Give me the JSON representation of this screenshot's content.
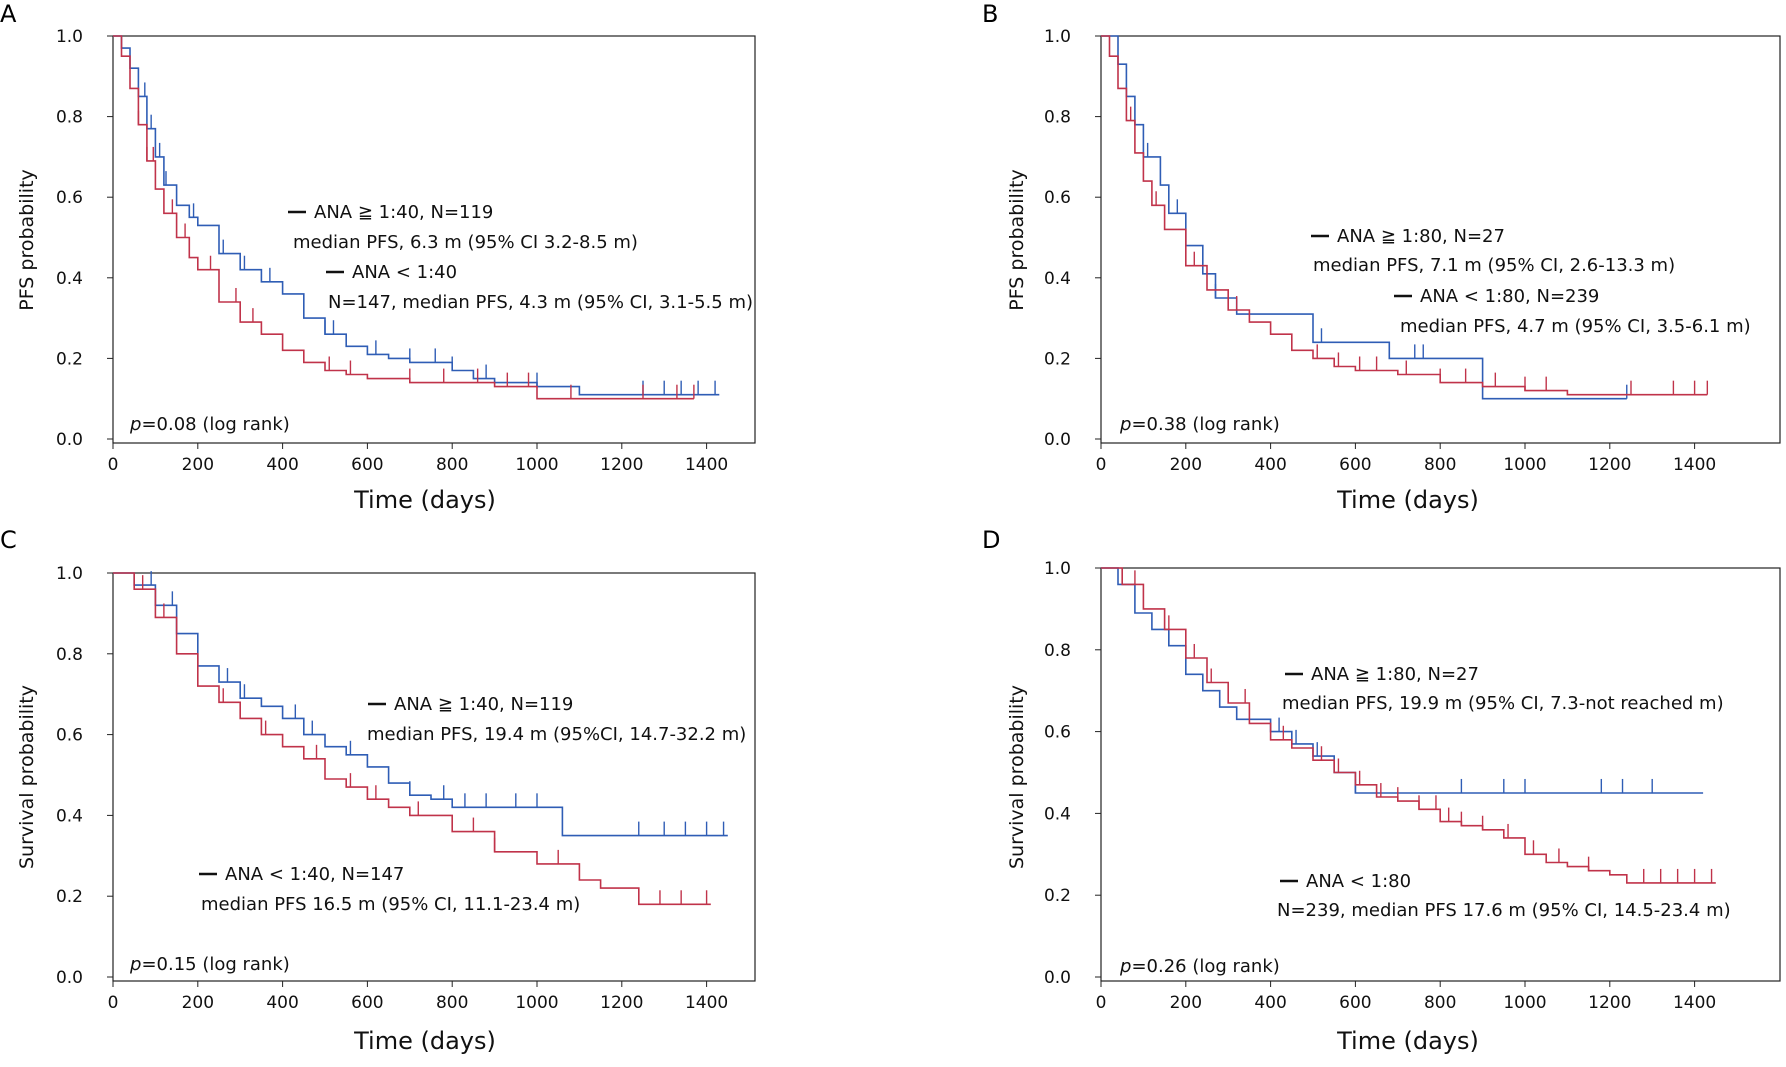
{
  "chart_data": [
    {
      "panel": "A",
      "type": "line",
      "xlabel": "Time (days)",
      "ylabel": "PFS probability",
      "xlim": [
        0,
        1500
      ],
      "ylim": [
        0,
        1.0
      ],
      "xticks": [
        0,
        200,
        400,
        600,
        800,
        1000,
        1200,
        1400
      ],
      "yticks": [
        "0.0",
        "0.2",
        "0.4",
        "0.6",
        "0.8",
        "1.0"
      ],
      "pvalue": "=0.08  (log rank)",
      "series": [
        {
          "name": "ANA ≧ 1:40",
          "color": "#2F5DB5",
          "x": [
            0,
            20,
            40,
            60,
            80,
            100,
            120,
            150,
            180,
            200,
            250,
            300,
            350,
            400,
            450,
            500,
            550,
            600,
            650,
            700,
            750,
            800,
            850,
            900,
            1000,
            1100,
            1200,
            1300,
            1430
          ],
          "y": [
            1.0,
            0.97,
            0.92,
            0.85,
            0.77,
            0.7,
            0.63,
            0.58,
            0.55,
            0.53,
            0.46,
            0.42,
            0.39,
            0.36,
            0.3,
            0.26,
            0.23,
            0.21,
            0.2,
            0.19,
            0.19,
            0.17,
            0.15,
            0.14,
            0.13,
            0.11,
            0.11,
            0.11,
            0.11
          ],
          "censor_x": [
            75,
            90,
            110,
            125,
            190,
            260,
            310,
            370,
            500,
            520,
            620,
            700,
            760,
            800,
            880,
            1000,
            1250,
            1300,
            1340,
            1380,
            1420
          ]
        },
        {
          "name": "ANA < 1:40",
          "color": "#C0334A",
          "x": [
            0,
            20,
            40,
            60,
            80,
            100,
            120,
            150,
            180,
            200,
            250,
            300,
            350,
            400,
            450,
            500,
            550,
            600,
            650,
            700,
            800,
            900,
            1000,
            1100,
            1200,
            1300,
            1370
          ],
          "y": [
            1.0,
            0.95,
            0.87,
            0.78,
            0.69,
            0.62,
            0.56,
            0.5,
            0.45,
            0.42,
            0.34,
            0.29,
            0.26,
            0.22,
            0.19,
            0.17,
            0.16,
            0.15,
            0.15,
            0.14,
            0.14,
            0.13,
            0.1,
            0.1,
            0.1,
            0.1,
            0.1
          ],
          "censor_x": [
            60,
            80,
            95,
            140,
            170,
            230,
            290,
            330,
            510,
            560,
            700,
            780,
            860,
            930,
            980,
            1080,
            1250,
            1330,
            1370
          ]
        }
      ],
      "annotations": [
        {
          "line1": "ANA ≧ 1:40, N=119",
          "line2": "median PFS, 6.3 m (95% CI 3.2-8.5 m)"
        },
        {
          "line1": "ANA <  1:40",
          "line2": "N=147, median PFS, 4.3 m (95% CI, 3.1-5.5 m)"
        }
      ]
    },
    {
      "panel": "B",
      "type": "line",
      "xlabel": "Time (days)",
      "ylabel": "PFS probability",
      "xlim": [
        0,
        1500
      ],
      "ylim": [
        0,
        1.0
      ],
      "xticks": [
        0,
        200,
        400,
        600,
        800,
        1000,
        1200,
        1400
      ],
      "yticks": [
        "0.0",
        "0.2",
        "0.4",
        "0.6",
        "0.8",
        "1.0"
      ],
      "pvalue": "=0.38  (log rank)",
      "series": [
        {
          "name": "ANA ≧ 1:80",
          "color": "#2F5DB5",
          "x": [
            0,
            40,
            60,
            80,
            100,
            140,
            160,
            200,
            240,
            270,
            320,
            500,
            680,
            900,
            1240
          ],
          "y": [
            1.0,
            0.93,
            0.85,
            0.78,
            0.7,
            0.63,
            0.56,
            0.48,
            0.41,
            0.35,
            0.31,
            0.24,
            0.2,
            0.1,
            0.1
          ],
          "censor_x": [
            110,
            180,
            270,
            520,
            740,
            760,
            1240
          ]
        },
        {
          "name": "ANA < 1:80",
          "color": "#C0334A",
          "x": [
            0,
            20,
            40,
            60,
            80,
            100,
            120,
            150,
            200,
            250,
            300,
            350,
            400,
            450,
            500,
            550,
            600,
            700,
            800,
            900,
            1000,
            1100,
            1200,
            1300,
            1430
          ],
          "y": [
            1.0,
            0.95,
            0.87,
            0.79,
            0.71,
            0.64,
            0.58,
            0.52,
            0.43,
            0.37,
            0.32,
            0.29,
            0.26,
            0.22,
            0.2,
            0.18,
            0.17,
            0.16,
            0.14,
            0.13,
            0.12,
            0.11,
            0.11,
            0.11,
            0.11
          ],
          "censor_x": [
            70,
            130,
            220,
            320,
            510,
            560,
            610,
            650,
            720,
            800,
            860,
            930,
            1000,
            1050,
            1250,
            1350,
            1400,
            1430
          ]
        }
      ],
      "annotations": [
        {
          "line1": "ANA ≧ 1:80, N=27",
          "line2": "median PFS, 7.1 m (95% CI, 2.6-13.3 m)"
        },
        {
          "line1": "ANA <  1:80, N=239",
          "line2": "median PFS, 4.7 m (95% CI, 3.5-6.1 m)"
        }
      ]
    },
    {
      "panel": "C",
      "type": "line",
      "xlabel": "Time (days)",
      "ylabel": "Survival probability",
      "xlim": [
        0,
        1500
      ],
      "ylim": [
        0,
        1.0
      ],
      "xticks": [
        0,
        200,
        400,
        600,
        800,
        1000,
        1200,
        1400
      ],
      "yticks": [
        "0.0",
        "0.2",
        "0.4",
        "0.6",
        "0.8",
        "1.0"
      ],
      "pvalue": "=0.15  (log rank)",
      "series": [
        {
          "name": "ANA ≧ 1:40",
          "color": "#2F5DB5",
          "x": [
            0,
            50,
            100,
            150,
            200,
            250,
            300,
            350,
            400,
            450,
            500,
            550,
            600,
            650,
            700,
            750,
            800,
            900,
            1000,
            1060,
            1200,
            1300,
            1450
          ],
          "y": [
            1.0,
            0.97,
            0.92,
            0.85,
            0.77,
            0.73,
            0.69,
            0.67,
            0.64,
            0.6,
            0.57,
            0.55,
            0.52,
            0.48,
            0.45,
            0.44,
            0.42,
            0.42,
            0.42,
            0.35,
            0.35,
            0.35,
            0.35
          ],
          "censor_x": [
            90,
            140,
            200,
            270,
            310,
            430,
            470,
            560,
            700,
            780,
            830,
            880,
            950,
            1000,
            1240,
            1300,
            1350,
            1400,
            1440
          ]
        },
        {
          "name": "ANA < 1:40",
          "color": "#C0334A",
          "x": [
            0,
            50,
            100,
            150,
            200,
            250,
            300,
            350,
            400,
            450,
            500,
            550,
            600,
            650,
            700,
            800,
            900,
            1000,
            1100,
            1150,
            1240,
            1300,
            1410
          ],
          "y": [
            1.0,
            0.96,
            0.89,
            0.8,
            0.72,
            0.68,
            0.64,
            0.6,
            0.57,
            0.54,
            0.49,
            0.47,
            0.44,
            0.42,
            0.4,
            0.36,
            0.31,
            0.28,
            0.24,
            0.22,
            0.18,
            0.18,
            0.18
          ],
          "censor_x": [
            70,
            120,
            260,
            360,
            480,
            560,
            620,
            720,
            850,
            900,
            1050,
            1240,
            1290,
            1340,
            1400
          ]
        }
      ],
      "annotations": [
        {
          "line1": "ANA ≧ 1:40, N=119",
          "line2": "median PFS, 19.4 m (95%CI, 14.7-32.2 m)"
        },
        {
          "line1": "ANA <  1:40, N=147",
          "line2": "median PFS 16.5 m (95% CI, 11.1-23.4 m)"
        }
      ]
    },
    {
      "panel": "D",
      "type": "line",
      "xlabel": "Time (days)",
      "ylabel": "Survival probability",
      "xlim": [
        0,
        1500
      ],
      "ylim": [
        0,
        1.0
      ],
      "xticks": [
        0,
        200,
        400,
        600,
        800,
        1000,
        1200,
        1400
      ],
      "yticks": [
        "0.0",
        "0.2",
        "0.4",
        "0.6",
        "0.8",
        "1.0"
      ],
      "pvalue": "=0.26  (log rank)",
      "series": [
        {
          "name": "ANA ≧ 1:80",
          "color": "#2F5DB5",
          "x": [
            0,
            40,
            80,
            120,
            160,
            200,
            240,
            280,
            320,
            400,
            450,
            500,
            550,
            600,
            700,
            800,
            1000,
            1200,
            1420
          ],
          "y": [
            1.0,
            0.96,
            0.89,
            0.85,
            0.81,
            0.74,
            0.7,
            0.66,
            0.63,
            0.6,
            0.57,
            0.54,
            0.5,
            0.45,
            0.45,
            0.45,
            0.45,
            0.45,
            0.45
          ],
          "censor_x": [
            50,
            160,
            420,
            460,
            510,
            600,
            850,
            950,
            1000,
            1180,
            1230,
            1300
          ]
        },
        {
          "name": "ANA < 1:80",
          "color": "#C0334A",
          "x": [
            0,
            50,
            100,
            150,
            200,
            250,
            300,
            350,
            400,
            450,
            500,
            550,
            600,
            650,
            700,
            750,
            800,
            850,
            900,
            950,
            1000,
            1050,
            1100,
            1150,
            1200,
            1240,
            1300,
            1450
          ],
          "y": [
            1.0,
            0.96,
            0.9,
            0.85,
            0.78,
            0.72,
            0.67,
            0.62,
            0.58,
            0.56,
            0.53,
            0.5,
            0.47,
            0.44,
            0.43,
            0.41,
            0.38,
            0.37,
            0.36,
            0.34,
            0.3,
            0.28,
            0.27,
            0.26,
            0.25,
            0.23,
            0.23,
            0.23
          ],
          "censor_x": [
            80,
            160,
            220,
            260,
            340,
            430,
            520,
            560,
            610,
            660,
            700,
            750,
            790,
            820,
            850,
            900,
            960,
            1020,
            1080,
            1150,
            1280,
            1320,
            1360,
            1400,
            1440
          ]
        }
      ],
      "annotations": [
        {
          "line1": "ANA ≧ 1:80, N=27",
          "line2": "median PFS, 19.9 m (95% CI, 7.3-not reached m)"
        },
        {
          "line1": "ANA <  1:80",
          "line2": "N=239, median PFS 17.6 m (95% CI, 14.5-23.4 m)"
        }
      ]
    }
  ]
}
